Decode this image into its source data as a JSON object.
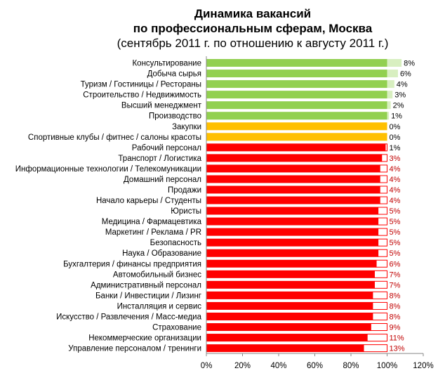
{
  "chart_data": {
    "type": "bar",
    "orientation": "horizontal",
    "stacked": true,
    "title": [
      "Динамика вакансий",
      "по профессиональным сферам, Москва",
      "(сентябрь 2011 г. по отношению к августу 2011 г.)"
    ],
    "categories": [
      "Консультирование",
      "Добыча сырья",
      "Туризм / Гостиницы / Рестораны",
      "Строительство / Недвижимость",
      "Высший менеджмент",
      "Производство",
      "Закупки",
      "Спортивные клубы / фитнес / салоны красоты",
      "Рабочий персонал",
      "Транспорт / Логистика",
      "Информационные технологии / Телекомуникации",
      "Домашний персонал",
      "Продажи",
      "Начало карьеры / Студенты",
      "Юристы",
      "Медицина / Фармацевтика",
      "Маркетинг / Реклама / PR",
      "Безопасность",
      "Наука / Образование",
      "Бухгалтерия  / финансы предприятия",
      "Автомобильный бизнес",
      "Административный персонал",
      "Банки / Инвестиции / Лизинг",
      "Инсталляция и сервис",
      "Искусство / Развлечения / Масс-медиа",
      "Страхование",
      "Некоммерческие организации",
      "Управление персоналом / тренинги"
    ],
    "change_labels": [
      "8%",
      "6%",
      "4%",
      "3%",
      "2%",
      "1%",
      "0%",
      "0%",
      "1%",
      "3%",
      "4%",
      "4%",
      "4%",
      "4%",
      "5%",
      "5%",
      "5%",
      "5%",
      "5%",
      "6%",
      "7%",
      "7%",
      "8%",
      "8%",
      "8%",
      "9%",
      "11%",
      "13%"
    ],
    "change_values": [
      8,
      6,
      4,
      3,
      2,
      1,
      0,
      0,
      -1,
      -3,
      -4,
      -4,
      -4,
      -4,
      -5,
      -5,
      -5,
      -5,
      -5,
      -6,
      -7,
      -7,
      -8,
      -8,
      -8,
      -9,
      -11,
      -13
    ],
    "xlim": [
      0,
      120
    ],
    "xticks": [
      "0%",
      "20%",
      "40%",
      "60%",
      "80%",
      "100%",
      "120%"
    ],
    "colors": {
      "growth": "#92d050",
      "growth_light": "#d8efc0",
      "flat": "#ffc000",
      "decline": "#ff0000",
      "label_growth": "#000000",
      "label_decline": "#c00000"
    },
    "grid": false,
    "legend": "none"
  }
}
